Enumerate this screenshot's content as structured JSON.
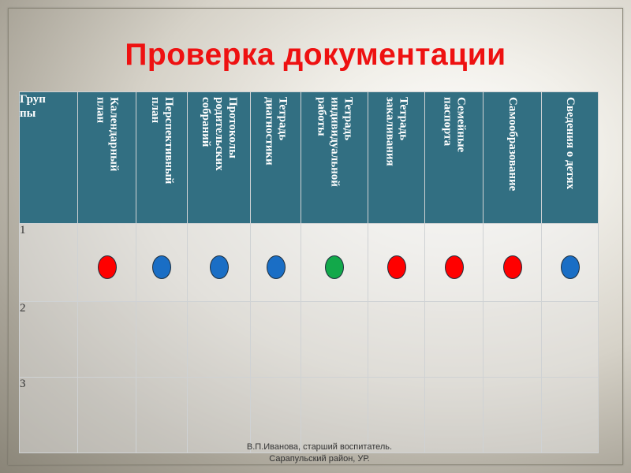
{
  "slide": {
    "title": "Проверка документации",
    "footer": {
      "line1": "В.П.Иванова, старший воспитатель.",
      "line2": "Сарапульский район, УР."
    }
  },
  "table": {
    "corner_header": "Груп\nпы",
    "columns": [
      "Календарный\nплан",
      "Перспективный\nплан",
      "Протоколы\nродительских\nсобраний",
      "Тетрадь\nдиагностики",
      "Тетрадь\nиндивидуальной\nработы",
      "Тетрадь\nзакаливания",
      "Семейные\nпаспорта",
      "Самообразование",
      "Сведения о детях"
    ],
    "rows": [
      {
        "label": "1",
        "marks": [
          "red",
          "blue",
          "blue",
          "blue",
          "green",
          "red",
          "red",
          "red",
          "blue"
        ]
      },
      {
        "label": "2",
        "marks": []
      },
      {
        "label": "3",
        "marks": []
      }
    ],
    "mark_colors": {
      "red": "#ff0000",
      "blue": "#1a6ec5",
      "green": "#12a84a"
    }
  }
}
